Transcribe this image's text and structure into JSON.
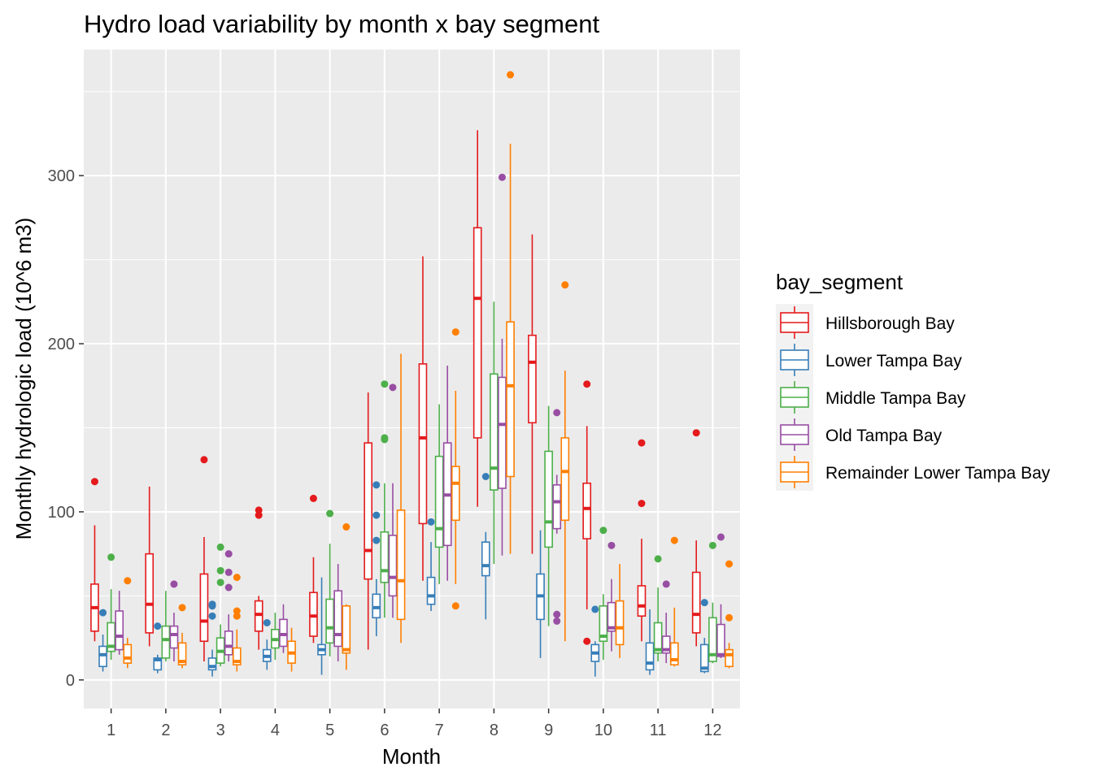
{
  "chart_data": {
    "type": "boxplot",
    "title": "Hydro load variability by month x bay segment",
    "xlabel": "Month",
    "ylabel": "Monthly hydrologic load (10^6 m3)",
    "categories": [
      "1",
      "2",
      "3",
      "4",
      "5",
      "6",
      "7",
      "8",
      "9",
      "10",
      "11",
      "12"
    ],
    "y_ticks": [
      0,
      100,
      200,
      300
    ],
    "ylim": [
      -17,
      375
    ],
    "grid": true,
    "legend": {
      "title": "bay_segment",
      "position": "right"
    },
    "series": [
      {
        "name": "Hillsborough Bay",
        "color": "#e41a1c",
        "boxes": [
          {
            "lw": 23,
            "q1": 29,
            "med": 43,
            "q3": 57,
            "uw": 92,
            "outliers": [
              118
            ]
          },
          {
            "lw": 20,
            "q1": 28,
            "med": 45,
            "q3": 75,
            "uw": 115,
            "outliers": []
          },
          {
            "lw": 11,
            "q1": 23,
            "med": 35,
            "q3": 63,
            "uw": 85,
            "outliers": [
              131
            ]
          },
          {
            "lw": 18,
            "q1": 29,
            "med": 39,
            "q3": 47,
            "uw": 50,
            "outliers": [
              98,
              101
            ]
          },
          {
            "lw": 22,
            "q1": 26,
            "med": 38,
            "q3": 52,
            "uw": 73,
            "outliers": [
              108
            ]
          },
          {
            "lw": 18,
            "q1": 60,
            "med": 77,
            "q3": 141,
            "uw": 171,
            "outliers": []
          },
          {
            "lw": 59,
            "q1": 93,
            "med": 144,
            "q3": 188,
            "uw": 252,
            "outliers": []
          },
          {
            "lw": 103,
            "q1": 144,
            "med": 227,
            "q3": 269,
            "uw": 327,
            "outliers": []
          },
          {
            "lw": 75,
            "q1": 153,
            "med": 189,
            "q3": 205,
            "uw": 265,
            "outliers": []
          },
          {
            "lw": 42,
            "q1": 84,
            "med": 102,
            "q3": 117,
            "uw": 151,
            "outliers": [
              176,
              23
            ]
          },
          {
            "lw": 23,
            "q1": 38,
            "med": 44,
            "q3": 56,
            "uw": 84,
            "outliers": [
              141,
              105
            ]
          },
          {
            "lw": 20,
            "q1": 28,
            "med": 39,
            "q3": 64,
            "uw": 83,
            "outliers": [
              147
            ]
          }
        ]
      },
      {
        "name": "Lower Tampa Bay",
        "color": "#377eb8",
        "boxes": [
          {
            "lw": 5,
            "q1": 8,
            "med": 15,
            "q3": 20,
            "uw": 27,
            "outliers": [
              40
            ]
          },
          {
            "lw": 4,
            "q1": 6,
            "med": 12,
            "q3": 13,
            "uw": 15,
            "outliers": [
              32
            ]
          },
          {
            "lw": 2,
            "q1": 6,
            "med": 8,
            "q3": 13,
            "uw": 18,
            "outliers": [
              44,
              38,
              45
            ]
          },
          {
            "lw": 6,
            "q1": 11,
            "med": 14,
            "q3": 18,
            "uw": 24,
            "outliers": [
              34
            ]
          },
          {
            "lw": 3,
            "q1": 15,
            "med": 18,
            "q3": 21,
            "uw": 61,
            "outliers": []
          },
          {
            "lw": 26,
            "q1": 37,
            "med": 43,
            "q3": 51,
            "uw": 60,
            "outliers": [
              116,
              98,
              83
            ]
          },
          {
            "lw": 41,
            "q1": 45,
            "med": 50,
            "q3": 61,
            "uw": 82,
            "outliers": [
              94
            ]
          },
          {
            "lw": 36,
            "q1": 62,
            "med": 68,
            "q3": 82,
            "uw": 88,
            "outliers": [
              121
            ]
          },
          {
            "lw": 13,
            "q1": 36,
            "med": 50,
            "q3": 63,
            "uw": 89,
            "outliers": []
          },
          {
            "lw": 2,
            "q1": 11,
            "med": 16,
            "q3": 21,
            "uw": 23,
            "outliers": [
              42
            ]
          },
          {
            "lw": 3,
            "q1": 6,
            "med": 10,
            "q3": 22,
            "uw": 42,
            "outliers": []
          },
          {
            "lw": 4,
            "q1": 5,
            "med": 7,
            "q3": 21,
            "uw": 25,
            "outliers": [
              46
            ]
          }
        ]
      },
      {
        "name": "Middle Tampa Bay",
        "color": "#4daf4a",
        "boxes": [
          {
            "lw": 12,
            "q1": 17,
            "med": 20,
            "q3": 34,
            "uw": 54,
            "outliers": [
              73
            ]
          },
          {
            "lw": 11,
            "q1": 13,
            "med": 24,
            "q3": 32,
            "uw": 53,
            "outliers": []
          },
          {
            "lw": 8,
            "q1": 10,
            "med": 17,
            "q3": 25,
            "uw": 33,
            "outliers": [
              79,
              65,
              58
            ]
          },
          {
            "lw": 12,
            "q1": 19,
            "med": 24,
            "q3": 30,
            "uw": 40,
            "outliers": []
          },
          {
            "lw": 14,
            "q1": 22,
            "med": 31,
            "q3": 48,
            "uw": 81,
            "outliers": [
              99
            ]
          },
          {
            "lw": 37,
            "q1": 58,
            "med": 65,
            "q3": 88,
            "uw": 117,
            "outliers": [
              176,
              143,
              144
            ]
          },
          {
            "lw": 57,
            "q1": 79,
            "med": 90,
            "q3": 133,
            "uw": 164,
            "outliers": []
          },
          {
            "lw": 69,
            "q1": 113,
            "med": 126,
            "q3": 182,
            "uw": 225,
            "outliers": []
          },
          {
            "lw": 32,
            "q1": 79,
            "med": 94,
            "q3": 136,
            "uw": 163,
            "outliers": []
          },
          {
            "lw": 12,
            "q1": 23,
            "med": 26,
            "q3": 44,
            "uw": 51,
            "outliers": [
              89
            ]
          },
          {
            "lw": 11,
            "q1": 16,
            "med": 18,
            "q3": 34,
            "uw": 55,
            "outliers": [
              72
            ]
          },
          {
            "lw": 10,
            "q1": 11,
            "med": 15,
            "q3": 37,
            "uw": 46,
            "outliers": [
              80
            ]
          }
        ]
      },
      {
        "name": "Old Tampa Bay",
        "color": "#984ea3",
        "boxes": [
          {
            "lw": 15,
            "q1": 18,
            "med": 26,
            "q3": 41,
            "uw": 53,
            "outliers": []
          },
          {
            "lw": 11,
            "q1": 19,
            "med": 27,
            "q3": 32,
            "uw": 40,
            "outliers": [
              57
            ]
          },
          {
            "lw": 11,
            "q1": 15,
            "med": 20,
            "q3": 29,
            "uw": 39,
            "outliers": [
              75,
              64,
              55
            ]
          },
          {
            "lw": 16,
            "q1": 20,
            "med": 27,
            "q3": 36,
            "uw": 45,
            "outliers": []
          },
          {
            "lw": 11,
            "q1": 20,
            "med": 27,
            "q3": 53,
            "uw": 69,
            "outliers": []
          },
          {
            "lw": 37,
            "q1": 50,
            "med": 61,
            "q3": 86,
            "uw": 117,
            "outliers": [
              174
            ]
          },
          {
            "lw": 59,
            "q1": 80,
            "med": 110,
            "q3": 141,
            "uw": 187,
            "outliers": []
          },
          {
            "lw": 74,
            "q1": 114,
            "med": 152,
            "q3": 180,
            "uw": 203,
            "outliers": [
              299
            ]
          },
          {
            "lw": 87,
            "q1": 90,
            "med": 106,
            "q3": 116,
            "uw": 122,
            "outliers": [
              159,
              39,
              35
            ]
          },
          {
            "lw": 17,
            "q1": 29,
            "med": 31,
            "q3": 46,
            "uw": 60,
            "outliers": [
              80
            ]
          },
          {
            "lw": 10,
            "q1": 16,
            "med": 18,
            "q3": 26,
            "uw": 40,
            "outliers": [
              57
            ]
          },
          {
            "lw": 13,
            "q1": 14,
            "med": 15,
            "q3": 33,
            "uw": 45,
            "outliers": [
              85
            ]
          }
        ]
      },
      {
        "name": "Remainder Lower Tampa Bay",
        "color": "#ff7f00",
        "boxes": [
          {
            "lw": 7,
            "q1": 10,
            "med": 13,
            "q3": 21,
            "uw": 25,
            "outliers": [
              59
            ]
          },
          {
            "lw": 7,
            "q1": 9,
            "med": 11,
            "q3": 22,
            "uw": 28,
            "outliers": [
              43
            ]
          },
          {
            "lw": 5,
            "q1": 9,
            "med": 11,
            "q3": 19,
            "uw": 30,
            "outliers": [
              61,
              41,
              38
            ]
          },
          {
            "lw": 5,
            "q1": 10,
            "med": 16,
            "q3": 23,
            "uw": 31,
            "outliers": []
          },
          {
            "lw": 6,
            "q1": 16,
            "med": 18,
            "q3": 44,
            "uw": 45,
            "outliers": [
              91
            ]
          },
          {
            "lw": 22,
            "q1": 36,
            "med": 59,
            "q3": 101,
            "uw": 194,
            "outliers": []
          },
          {
            "lw": 57,
            "q1": 95,
            "med": 117,
            "q3": 127,
            "uw": 172,
            "outliers": [
              207,
              44
            ]
          },
          {
            "lw": 75,
            "q1": 121,
            "med": 175,
            "q3": 213,
            "uw": 319,
            "outliers": [
              360
            ]
          },
          {
            "lw": 23,
            "q1": 95,
            "med": 124,
            "q3": 144,
            "uw": 184,
            "outliers": [
              235
            ]
          },
          {
            "lw": 13,
            "q1": 21,
            "med": 31,
            "q3": 47,
            "uw": 69,
            "outliers": []
          },
          {
            "lw": 8,
            "q1": 9,
            "med": 12,
            "q3": 22,
            "uw": 43,
            "outliers": [
              83
            ]
          },
          {
            "lw": 7,
            "q1": 8,
            "med": 15,
            "q3": 18,
            "uw": 22,
            "outliers": [
              37,
              69
            ]
          }
        ]
      }
    ]
  }
}
